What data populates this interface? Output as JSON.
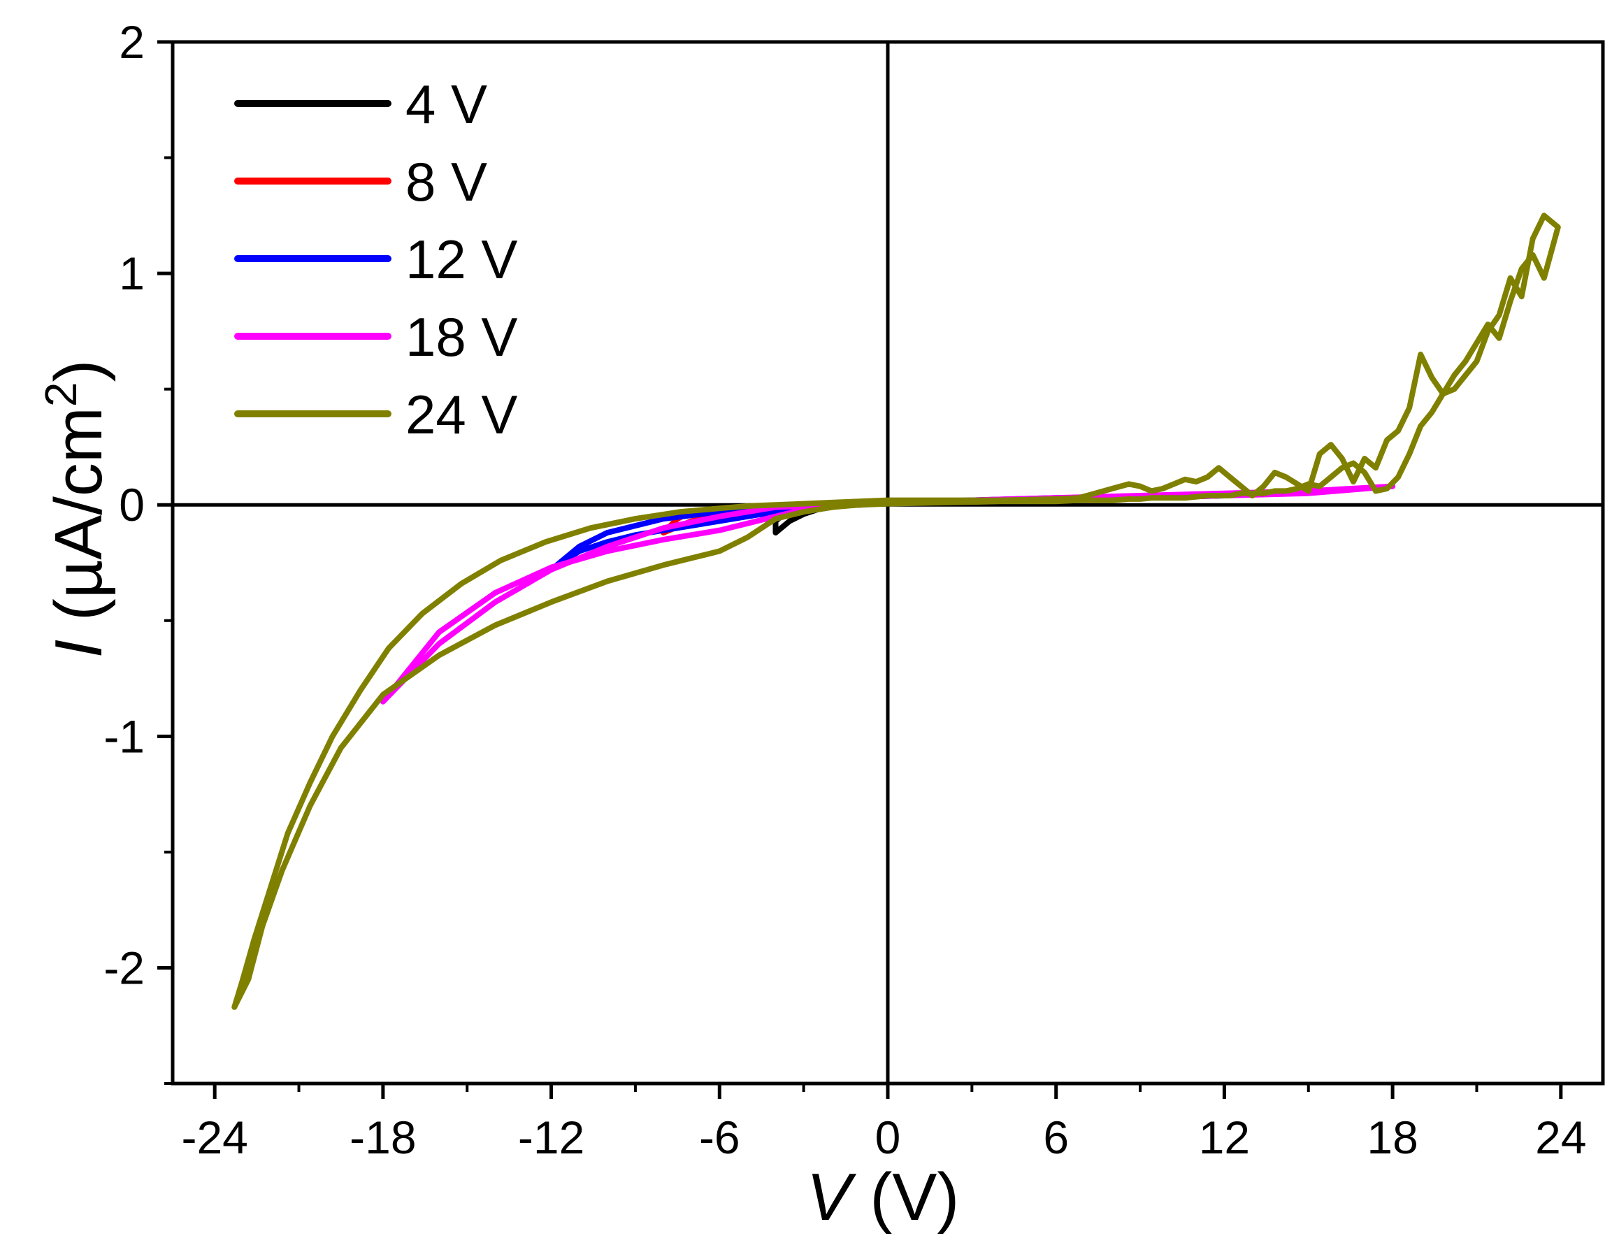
{
  "chart_data": {
    "type": "line",
    "title": "",
    "xlabel": {
      "italic": "V",
      "rest": " (V)"
    },
    "ylabel": {
      "italic": "I",
      "rest": " (µA/cm",
      "sup": "2",
      "close": ")"
    },
    "xlim": [
      -25.5,
      25.5
    ],
    "ylim": [
      -2.5,
      2
    ],
    "xticks": [
      -24,
      -18,
      -12,
      -6,
      0,
      6,
      12,
      18,
      24
    ],
    "xtick_labels": [
      "-24",
      "-18",
      "-12",
      "-6",
      "0",
      "6",
      "12",
      "18",
      "24"
    ],
    "yticks": [
      -2,
      -1,
      0,
      1,
      2
    ],
    "ytick_labels": [
      "-2",
      "-1",
      "0",
      "1",
      "2"
    ],
    "grid": false,
    "zero_lines": true,
    "legend_position": "top-left",
    "series": [
      {
        "name": "4 V",
        "color": "#000000",
        "x": [
          -4,
          -3.5,
          -3,
          -2.5,
          -2,
          -1.5,
          -1,
          -0.5,
          0,
          0.5,
          1,
          2,
          3,
          4,
          3,
          2,
          1,
          0,
          -1,
          -2,
          -2.5,
          -3,
          -3.5,
          -3.8,
          -4,
          -4
        ],
        "y": [
          -0.12,
          -0.07,
          -0.04,
          -0.02,
          -0.01,
          0.0,
          0.0,
          0.005,
          0.01,
          0.01,
          0.012,
          0.015,
          0.018,
          0.02,
          0.018,
          0.016,
          0.014,
          0.012,
          0.01,
          0.0,
          -0.01,
          -0.02,
          -0.03,
          -0.05,
          -0.07,
          -0.12
        ]
      },
      {
        "name": "8 V",
        "color": "#ff0000",
        "x": [
          -8,
          -7,
          -6,
          -5,
          -4,
          -3,
          -2,
          -1,
          0,
          2,
          4,
          6,
          8,
          6,
          4,
          2,
          0,
          -2,
          -4,
          -6,
          -7,
          -7.5,
          -8
        ],
        "y": [
          -0.12,
          -0.07,
          -0.05,
          -0.03,
          -0.02,
          -0.01,
          0.0,
          0.005,
          0.01,
          0.015,
          0.02,
          0.025,
          0.03,
          0.025,
          0.02,
          0.015,
          0.01,
          0.0,
          -0.01,
          -0.02,
          -0.03,
          -0.06,
          -0.12
        ]
      },
      {
        "name": "12 V",
        "color": "#0000ff",
        "x": [
          -12,
          -11,
          -10,
          -9,
          -8,
          -7,
          -6,
          -5,
          -4,
          -3,
          -2,
          -1,
          0,
          3,
          6,
          9,
          12,
          9,
          6,
          3,
          0,
          -2,
          -4,
          -6,
          -8,
          -10,
          -11,
          -12
        ],
        "y": [
          -0.28,
          -0.2,
          -0.16,
          -0.13,
          -0.11,
          -0.09,
          -0.07,
          -0.05,
          -0.03,
          -0.015,
          -0.005,
          0.0,
          0.01,
          0.015,
          0.02,
          0.03,
          0.04,
          0.035,
          0.03,
          0.02,
          0.01,
          0.0,
          -0.01,
          -0.03,
          -0.06,
          -0.12,
          -0.18,
          -0.28
        ]
      },
      {
        "name": "18 V",
        "color": "#ff00ff",
        "x": [
          -18,
          -16,
          -14,
          -12,
          -10,
          -8,
          -6,
          -5,
          -4,
          -3,
          -2,
          -1,
          0,
          3,
          6,
          9,
          12,
          15,
          18,
          15,
          12,
          9,
          6,
          3,
          0,
          -2,
          -4,
          -6,
          -8,
          -10,
          -12,
          -14,
          -16,
          -18
        ],
        "y": [
          -0.85,
          -0.55,
          -0.38,
          -0.27,
          -0.2,
          -0.15,
          -0.11,
          -0.08,
          -0.05,
          -0.02,
          -0.005,
          0.0,
          0.01,
          0.015,
          0.02,
          0.03,
          0.04,
          0.05,
          0.08,
          0.06,
          0.05,
          0.04,
          0.03,
          0.02,
          0.01,
          0.0,
          -0.01,
          -0.05,
          -0.1,
          -0.18,
          -0.28,
          -0.42,
          -0.6,
          -0.85
        ]
      },
      {
        "name": "24 V",
        "color": "#808000",
        "x": [
          -23.3,
          -23.0,
          -22.6,
          -22.0,
          -21.4,
          -20.6,
          -19.8,
          -18.8,
          -17.8,
          -16.6,
          -15.2,
          -13.8,
          -12.2,
          -10.6,
          -9.0,
          -7.4,
          -6.0,
          -5.0,
          -4.0,
          -3.0,
          -2.0,
          -1.0,
          0,
          2,
          4,
          6,
          6.8,
          7.4,
          8.0,
          8.6,
          9.0,
          9.4,
          9.8,
          10.2,
          10.6,
          11.0,
          11.4,
          11.8,
          12.2,
          12.6,
          13.0,
          13.4,
          13.8,
          14.2,
          14.6,
          15.0,
          15.4,
          15.8,
          16.2,
          16.6,
          17.0,
          17.4,
          17.8,
          18.2,
          18.6,
          19.0,
          19.4,
          19.8,
          20.2,
          20.6,
          21.0,
          21.4,
          21.8,
          22.2,
          22.6,
          23.0,
          23.4,
          23.9,
          23.4,
          23.0,
          22.6,
          22.2,
          21.8,
          21.4,
          21.0,
          20.6,
          20.2,
          19.8,
          19.4,
          19.0,
          18.6,
          18.2,
          17.8,
          17.4,
          17.0,
          16.6,
          16.2,
          15.8,
          15.4,
          15.0,
          14.6,
          14.2,
          13.8,
          13.4,
          13.0,
          12.6,
          12.2,
          11.8,
          11.4,
          11.0,
          10.6,
          10.2,
          9.8,
          9.4,
          9.0,
          8.6,
          8.0,
          7.4,
          6.8,
          6,
          4,
          2,
          0,
          -1,
          -2,
          -3,
          -4,
          -4.5,
          -5,
          -6,
          -8,
          -10,
          -12,
          -14,
          -16,
          -18,
          -19.5,
          -20.6,
          -21.6,
          -22.3,
          -22.8,
          -23.3
        ],
        "y": [
          -2.17,
          -2.05,
          -1.88,
          -1.65,
          -1.42,
          -1.2,
          -1.0,
          -0.8,
          -0.62,
          -0.47,
          -0.34,
          -0.24,
          -0.16,
          -0.1,
          -0.06,
          -0.03,
          -0.015,
          -0.005,
          0.0,
          0.005,
          0.01,
          0.015,
          0.02,
          0.02,
          0.02,
          0.025,
          0.03,
          0.05,
          0.07,
          0.09,
          0.08,
          0.06,
          0.07,
          0.09,
          0.11,
          0.1,
          0.12,
          0.16,
          0.12,
          0.08,
          0.04,
          0.08,
          0.14,
          0.12,
          0.09,
          0.06,
          0.22,
          0.26,
          0.2,
          0.1,
          0.2,
          0.16,
          0.28,
          0.32,
          0.42,
          0.65,
          0.55,
          0.48,
          0.56,
          0.62,
          0.7,
          0.78,
          0.72,
          0.88,
          1.02,
          1.08,
          0.98,
          1.2,
          1.25,
          1.15,
          0.9,
          0.98,
          0.82,
          0.75,
          0.62,
          0.56,
          0.5,
          0.48,
          0.4,
          0.34,
          0.22,
          0.12,
          0.07,
          0.06,
          0.14,
          0.18,
          0.16,
          0.12,
          0.08,
          0.09,
          0.07,
          0.06,
          0.06,
          0.05,
          0.05,
          0.05,
          0.04,
          0.04,
          0.04,
          0.035,
          0.03,
          0.03,
          0.03,
          0.03,
          0.025,
          0.025,
          0.02,
          0.02,
          0.02,
          0.015,
          0.015,
          0.01,
          0.005,
          0.0,
          -0.01,
          -0.03,
          -0.06,
          -0.1,
          -0.14,
          -0.2,
          -0.26,
          -0.33,
          -0.42,
          -0.52,
          -0.65,
          -0.82,
          -1.05,
          -1.3,
          -1.58,
          -1.82,
          -2.05,
          -2.17
        ]
      }
    ]
  }
}
